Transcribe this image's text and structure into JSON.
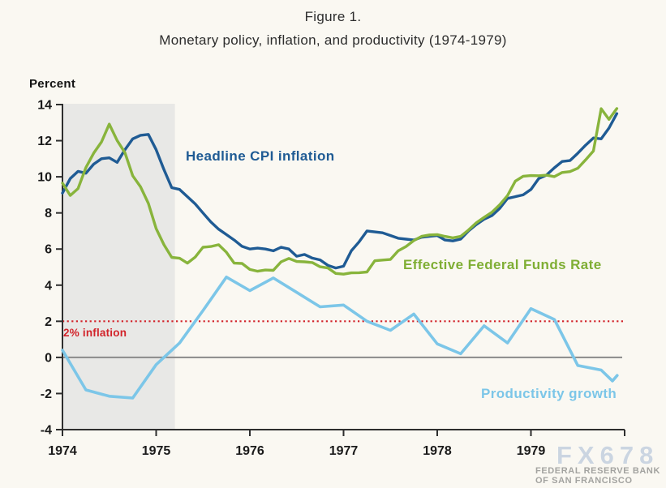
{
  "chart_data": {
    "type": "line",
    "title": "Figure 1.",
    "subtitle": "Monetary policy, inflation, and productivity (1974-1979)",
    "ylabel": "Percent",
    "x_range": [
      1974,
      1980
    ],
    "y_range": [
      -4,
      14
    ],
    "grid": false,
    "x_ticks": [
      {
        "v": 1974,
        "label": "1974"
      },
      {
        "v": 1975,
        "label": "1975"
      },
      {
        "v": 1976,
        "label": "1976"
      },
      {
        "v": 1977,
        "label": "1977"
      },
      {
        "v": 1978,
        "label": "1978"
      },
      {
        "v": 1979,
        "label": "1979"
      },
      {
        "v": 1980,
        "label": ""
      }
    ],
    "y_ticks": [
      {
        "v": 14,
        "label": "14"
      },
      {
        "v": 12,
        "label": "12"
      },
      {
        "v": 10,
        "label": "10"
      },
      {
        "v": 8,
        "label": "8"
      },
      {
        "v": 6,
        "label": "6"
      },
      {
        "v": 4,
        "label": "4"
      },
      {
        "v": 2,
        "label": "2"
      },
      {
        "v": 0,
        "label": "0"
      },
      {
        "v": -2,
        "label": "-2"
      },
      {
        "v": -4,
        "label": "-4"
      }
    ],
    "shaded_region": {
      "from": 1974.0,
      "to": 1975.2,
      "color": "#e8e8e6"
    },
    "zero_line": {
      "value": 0,
      "color": "#8a8a8a"
    },
    "reference_line": {
      "value": 2,
      "label": "2% inflation",
      "color": "#d2232a"
    },
    "axis_color": "#2e2e2e",
    "series": [
      {
        "name": "Productivity growth",
        "color": "#7cc6e8",
        "width": 3.6,
        "frequency": "quarterly",
        "x": [
          1974.0,
          1974.25,
          1974.5,
          1974.75,
          1975.0,
          1975.25,
          1975.5,
          1975.75,
          1976.0,
          1976.25,
          1976.5,
          1976.75,
          1977.0,
          1977.25,
          1977.5,
          1977.75,
          1978.0,
          1978.25,
          1978.5,
          1978.75,
          1979.0,
          1979.25,
          1979.5,
          1979.75,
          1979.87,
          1979.92
        ],
        "values": [
          0.4,
          -1.8,
          -2.15,
          -2.25,
          -0.4,
          0.8,
          2.6,
          4.45,
          3.7,
          4.4,
          3.6,
          2.8,
          2.9,
          2.0,
          1.5,
          2.4,
          0.75,
          0.2,
          1.75,
          0.8,
          2.7,
          2.1,
          -0.45,
          -0.7,
          -1.3,
          -1.0
        ]
      },
      {
        "name": "Headline CPI inflation",
        "color": "#1f5b94",
        "width": 3.4,
        "frequency": "monthly",
        "x_start": 1974.0,
        "x_step": 0.0833333,
        "values": [
          9.1,
          9.9,
          10.3,
          10.2,
          10.7,
          11.0,
          11.05,
          10.8,
          11.5,
          12.1,
          12.3,
          12.35,
          11.5,
          10.4,
          9.4,
          9.3,
          8.9,
          8.5,
          8.0,
          7.5,
          7.1,
          6.8,
          6.5,
          6.15,
          6.0,
          6.05,
          6.0,
          5.9,
          6.1,
          6.0,
          5.6,
          5.7,
          5.5,
          5.4,
          5.1,
          4.95,
          5.05,
          5.9,
          6.4,
          7.0,
          6.95,
          6.9,
          6.75,
          6.6,
          6.55,
          6.5,
          6.65,
          6.7,
          6.75,
          6.5,
          6.45,
          6.55,
          7.0,
          7.35,
          7.65,
          7.85,
          8.25,
          8.8,
          8.9,
          9.0,
          9.3,
          9.9,
          10.1,
          10.5,
          10.85,
          10.9,
          11.3,
          11.75,
          12.15,
          12.1,
          12.7,
          13.5
        ]
      },
      {
        "name": "Effective Federal Funds Rate",
        "color": "#88b43c",
        "width": 3.4,
        "frequency": "monthly",
        "x_start": 1974.0,
        "x_step": 0.0833333,
        "values": [
          9.65,
          8.97,
          9.35,
          10.51,
          11.31,
          11.93,
          12.92,
          12.01,
          11.34,
          10.06,
          9.45,
          8.53,
          7.13,
          6.24,
          5.54,
          5.49,
          5.22,
          5.55,
          6.1,
          6.14,
          6.24,
          5.82,
          5.22,
          5.2,
          4.87,
          4.77,
          4.84,
          4.82,
          5.29,
          5.48,
          5.31,
          5.29,
          5.25,
          5.02,
          4.95,
          4.65,
          4.61,
          4.68,
          4.69,
          4.73,
          5.35,
          5.39,
          5.42,
          5.9,
          6.14,
          6.47,
          6.7,
          6.78,
          6.8,
          6.7,
          6.62,
          6.7,
          7.05,
          7.45,
          7.75,
          8.04,
          8.45,
          8.96,
          9.76,
          10.03,
          10.07,
          10.06,
          10.09,
          10.01,
          10.24,
          10.29,
          10.47,
          10.94,
          11.43,
          13.77,
          13.18,
          13.78
        ]
      }
    ]
  },
  "watermark": {
    "brand": "FX678",
    "line1": "FEDERAL RESERVE BANK",
    "line2": "OF SAN FRANCISCO"
  }
}
